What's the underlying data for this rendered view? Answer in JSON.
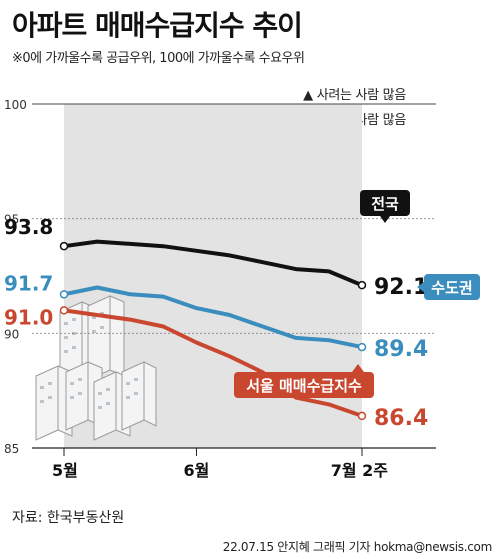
{
  "title": "아파트 매매수급지수 추이",
  "subtitle": "※0에 가까울수록 공급우위, 100에 가까울수록 수요우위",
  "legend": {
    "up": "▲ 사려는 사람 많음",
    "down": "▼ 팔려는 사람 많음"
  },
  "source": "자료: 한국부동산원",
  "credit": "22.07.15 안지혜 그래픽 기자 hokma@newsis.com",
  "watermark": "NEWSIS",
  "colors": {
    "national": "#111111",
    "capital": "#3a8dbd",
    "seoul": "#c9472f",
    "shade": "#e3e3e3"
  },
  "chart_data": {
    "type": "line",
    "title": "아파트 매매수급지수 추이",
    "xlabel": "",
    "ylabel": "",
    "ylim": [
      85,
      100
    ],
    "yticks": [
      "100",
      "95",
      "90",
      "85"
    ],
    "xticks": [
      "5월",
      "6월",
      "7월 2주"
    ],
    "x": [
      "5월 1주",
      "5월 2주",
      "5월 3주",
      "5월 4주",
      "6월 1주",
      "6월 2주",
      "6월 3주",
      "6월 4주",
      "7월 1주",
      "7월 2주"
    ],
    "series": [
      {
        "name": "전국",
        "values": [
          93.8,
          94.0,
          93.9,
          93.8,
          93.6,
          93.4,
          93.1,
          92.8,
          92.7,
          92.1
        ],
        "start_label": "93.8",
        "end_label": "92.1",
        "tag": "전국"
      },
      {
        "name": "수도권",
        "values": [
          91.7,
          92.0,
          91.7,
          91.6,
          91.1,
          90.8,
          90.3,
          89.8,
          89.7,
          89.4
        ],
        "start_label": "91.7",
        "end_label": "89.4",
        "tag": "수도권"
      },
      {
        "name": "서울",
        "values": [
          91.0,
          90.8,
          90.6,
          90.3,
          89.6,
          89.0,
          88.3,
          87.2,
          86.9,
          86.4
        ],
        "start_label": "91.0",
        "end_label": "86.4",
        "tag": "서울 매매수급지수"
      }
    ]
  }
}
